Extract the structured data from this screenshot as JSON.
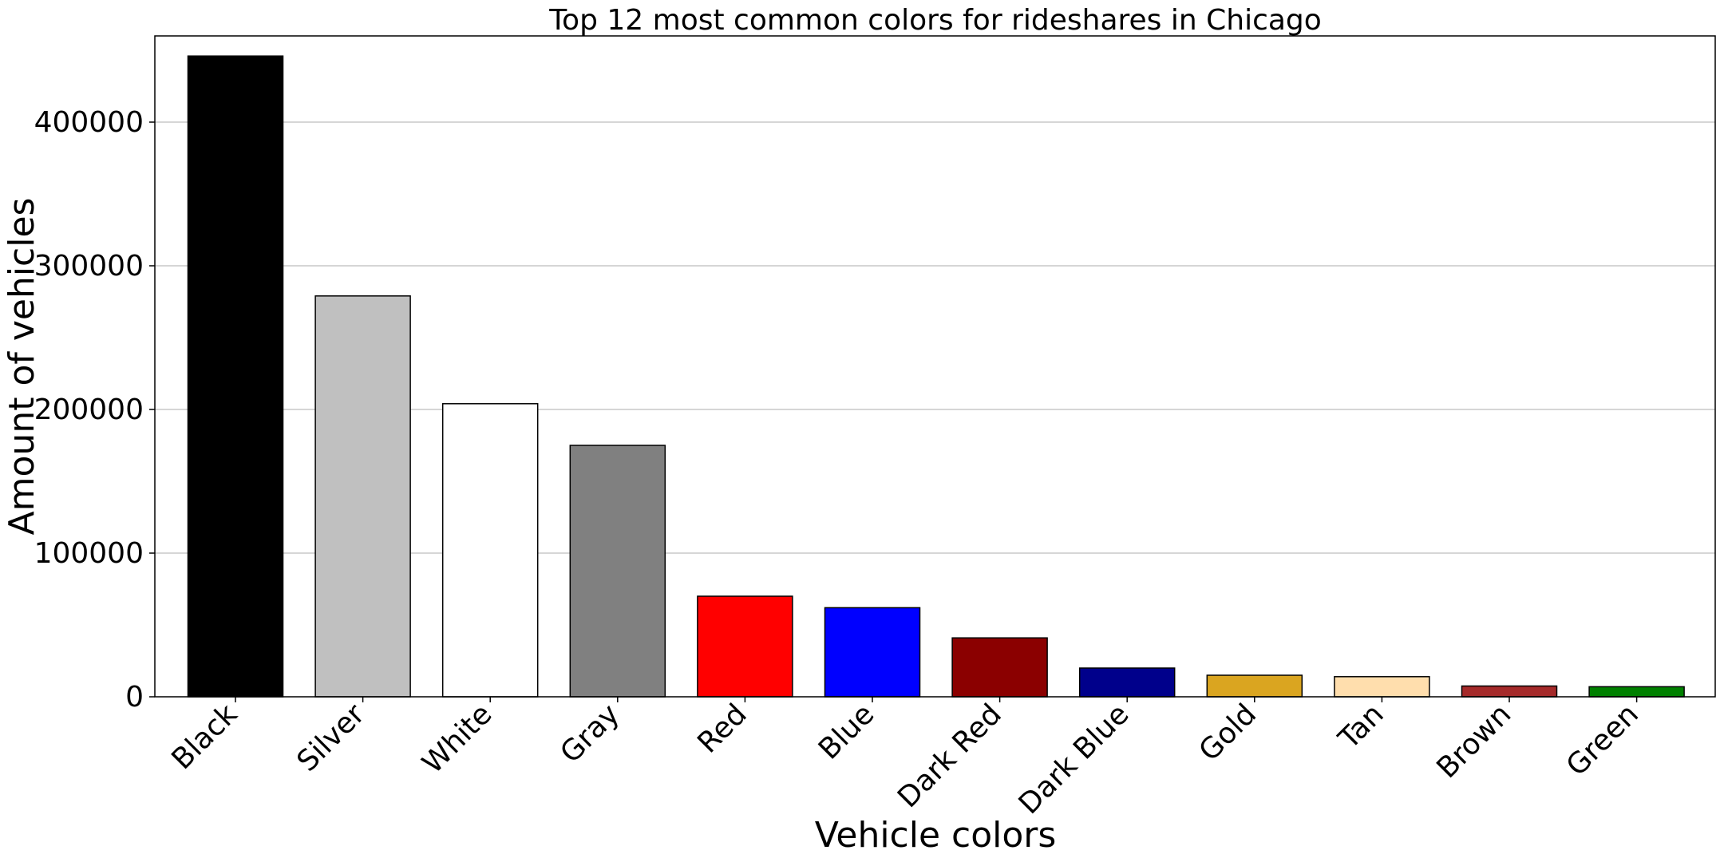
{
  "chart_data": {
    "type": "bar",
    "title": "Top 12 most common colors for rideshares in Chicago",
    "xlabel": "Vehicle colors",
    "ylabel": "Amount of vehicles",
    "categories": [
      "Black",
      "Silver",
      "White",
      "Gray",
      "Red",
      "Blue",
      "Dark Red",
      "Dark Blue",
      "Gold",
      "Tan",
      "Brown",
      "Green"
    ],
    "values": [
      446000,
      279000,
      204000,
      175000,
      70000,
      62000,
      41000,
      20000,
      15000,
      14000,
      7500,
      7000
    ],
    "bar_colors": [
      "#000000",
      "#c0c0c0",
      "#ffffff",
      "#808080",
      "#ff0000",
      "#0000ff",
      "#8b0000",
      "#00008b",
      "#daa520",
      "#ffdead",
      "#a52a2a",
      "#008000"
    ],
    "bar_edge_color": "#000000",
    "ylim": [
      0,
      460000
    ],
    "yticks": [
      0,
      100000,
      200000,
      300000,
      400000
    ],
    "ytick_labels": [
      "0",
      "100000",
      "200000",
      "300000",
      "400000"
    ],
    "grid": "horizontal",
    "legend": "none"
  }
}
